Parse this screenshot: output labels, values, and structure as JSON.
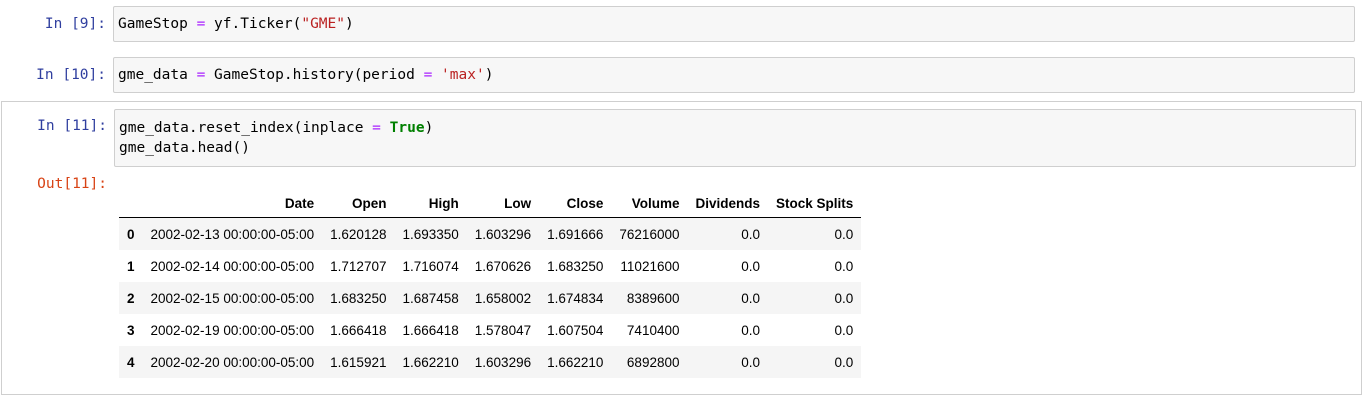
{
  "cells": [
    {
      "prompt": "In [9]:",
      "code": [
        [
          {
            "t": "GameStop ",
            "c": ""
          },
          {
            "t": "=",
            "c": "op"
          },
          {
            "t": " yf.Ticker(",
            "c": ""
          },
          {
            "t": "\"GME\"",
            "c": "str"
          },
          {
            "t": ")",
            "c": ""
          }
        ]
      ]
    },
    {
      "prompt": "In [10]:",
      "code": [
        [
          {
            "t": "gme_data ",
            "c": ""
          },
          {
            "t": "=",
            "c": "op"
          },
          {
            "t": " GameStop.history(period ",
            "c": ""
          },
          {
            "t": "=",
            "c": "op"
          },
          {
            "t": " ",
            "c": ""
          },
          {
            "t": "'max'",
            "c": "str"
          },
          {
            "t": ")",
            "c": ""
          }
        ]
      ]
    },
    {
      "prompt": "In [11]:",
      "code": [
        [
          {
            "t": "gme_data.reset_index(inplace ",
            "c": ""
          },
          {
            "t": "=",
            "c": "op"
          },
          {
            "t": " ",
            "c": ""
          },
          {
            "t": "True",
            "c": "kw"
          },
          {
            "t": ")",
            "c": ""
          }
        ],
        [
          {
            "t": "gme_data.head()",
            "c": ""
          }
        ]
      ],
      "out_prompt": "Out[11]:"
    }
  ],
  "table": {
    "columns": [
      "",
      "Date",
      "Open",
      "High",
      "Low",
      "Close",
      "Volume",
      "Dividends",
      "Stock Splits"
    ],
    "rows": [
      [
        "0",
        "2002-02-13 00:00:00-05:00",
        "1.620128",
        "1.693350",
        "1.603296",
        "1.691666",
        "76216000",
        "0.0",
        "0.0"
      ],
      [
        "1",
        "2002-02-14 00:00:00-05:00",
        "1.712707",
        "1.716074",
        "1.670626",
        "1.683250",
        "11021600",
        "0.0",
        "0.0"
      ],
      [
        "2",
        "2002-02-15 00:00:00-05:00",
        "1.683250",
        "1.687458",
        "1.658002",
        "1.674834",
        "8389600",
        "0.0",
        "0.0"
      ],
      [
        "3",
        "2002-02-19 00:00:00-05:00",
        "1.666418",
        "1.666418",
        "1.578047",
        "1.607504",
        "7410400",
        "0.0",
        "0.0"
      ],
      [
        "4",
        "2002-02-20 00:00:00-05:00",
        "1.615921",
        "1.662210",
        "1.603296",
        "1.662210",
        "6892800",
        "0.0",
        "0.0"
      ]
    ]
  }
}
